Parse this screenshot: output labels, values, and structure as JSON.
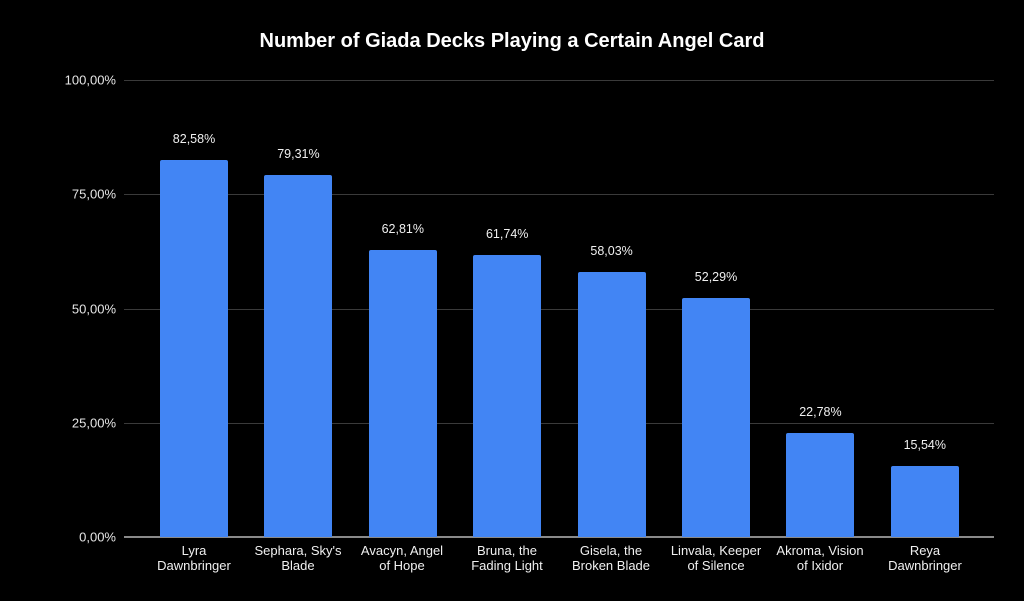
{
  "chart_data": {
    "type": "bar",
    "title": "Number of Giada Decks Playing a Certain Angel Card",
    "xlabel": "",
    "ylabel": "",
    "ylim": [
      0,
      100
    ],
    "yticks": [
      "0,00%",
      "25,00%",
      "50,00%",
      "75,00%",
      "100,00%"
    ],
    "grid": true,
    "legend": "none",
    "categories": [
      "Lyra Dawnbringer",
      "Sephara, Sky's Blade",
      "Avacyn, Angel of Hope",
      "Bruna, the Fading Light",
      "Gisela, the Broken Blade",
      "Linvala, Keeper of Silence",
      "Akroma, Vision of Ixidor",
      "Reya Dawnbringer"
    ],
    "values": [
      82.58,
      79.31,
      62.81,
      61.74,
      58.03,
      52.29,
      22.78,
      15.54
    ],
    "data_labels": [
      "82,58%",
      "79,31%",
      "62,81%",
      "61,74%",
      "58,03%",
      "52,29%",
      "22,78%",
      "15,54%"
    ],
    "bar_color": "#4285f4"
  },
  "labels": {
    "title": "Number of Giada Decks Playing a Certain Angel Card",
    "yticks": [
      "0,00%",
      "25,00%",
      "50,00%",
      "75,00%",
      "100,00%"
    ],
    "x": [
      [
        "Lyra",
        "Dawnbringer"
      ],
      [
        "Sephara, Sky's",
        "Blade"
      ],
      [
        "Avacyn, Angel",
        "of Hope"
      ],
      [
        "Bruna, the",
        "Fading Light"
      ],
      [
        "Gisela, the",
        "Broken Blade"
      ],
      [
        "Linvala, Keeper",
        "of Silence"
      ],
      [
        "Akroma, Vision",
        "of Ixidor"
      ],
      [
        "Reya",
        "Dawnbringer"
      ]
    ],
    "bars": [
      "82,58%",
      "79,31%",
      "62,81%",
      "61,74%",
      "58,03%",
      "52,29%",
      "22,78%",
      "15,54%"
    ]
  }
}
